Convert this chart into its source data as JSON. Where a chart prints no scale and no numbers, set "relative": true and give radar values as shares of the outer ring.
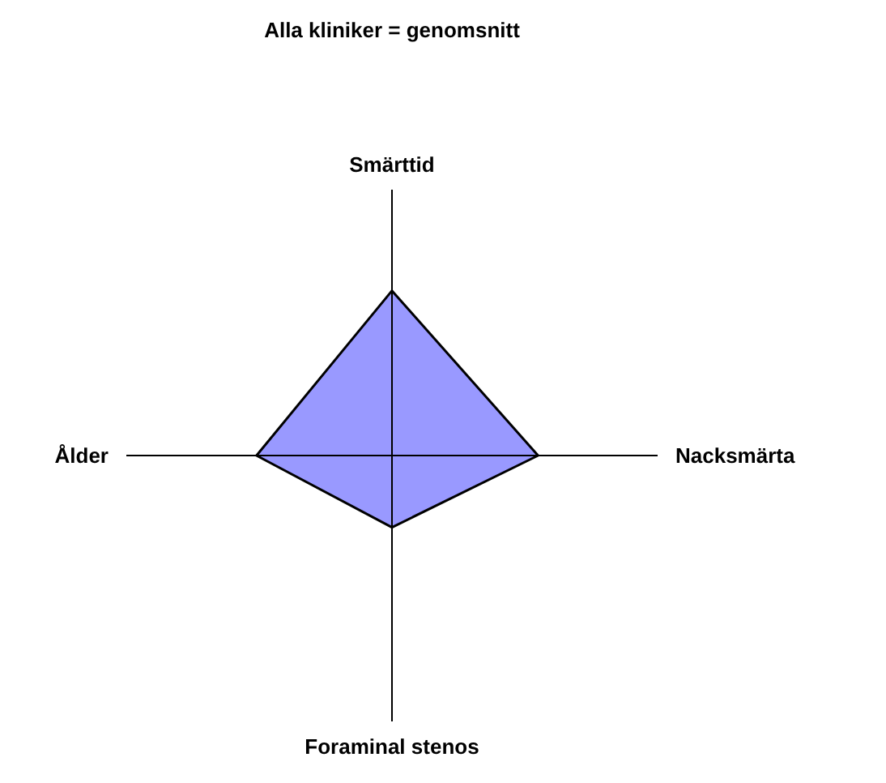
{
  "chart_data": {
    "type": "radar",
    "title": "Alla kliniker = genomsnitt",
    "categories": [
      "Smärttid",
      "Nacksmärta",
      "Foraminal stenos",
      "Ålder"
    ],
    "relative": true,
    "series": [
      {
        "color": "#9999ff",
        "values": [
          0.62,
          0.55,
          0.27,
          0.51
        ]
      }
    ]
  }
}
